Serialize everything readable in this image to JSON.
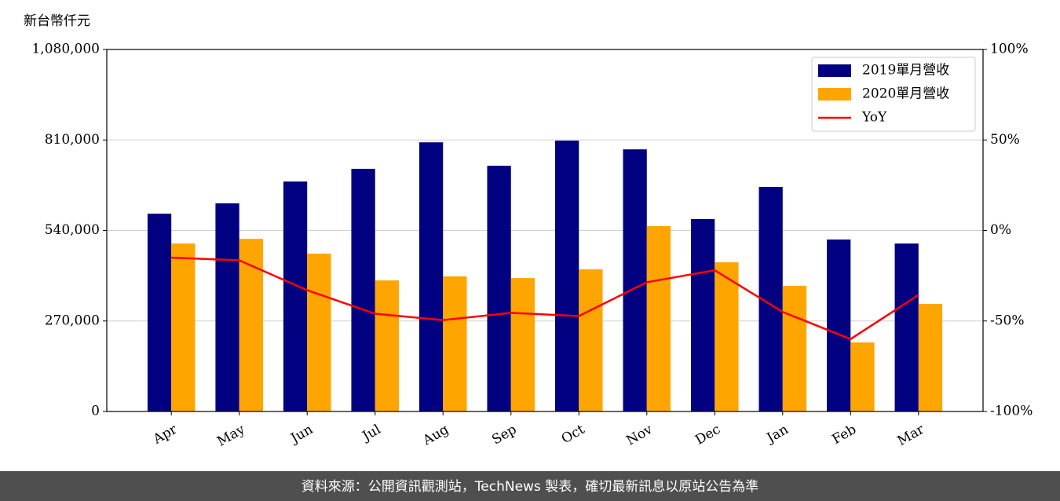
{
  "chart_data": {
    "type": "bar",
    "ylabel": "新台幣仟元",
    "categories": [
      "Apr",
      "May",
      "Jun",
      "Jul",
      "Aug",
      "Sep",
      "Oct",
      "Nov",
      "Dec",
      "Jan",
      "Feb",
      "Mar"
    ],
    "series": [
      {
        "name": "2019單月營收",
        "type": "bar",
        "color": "#000080",
        "values": [
          590000,
          621000,
          686000,
          724000,
          803000,
          733000,
          808000,
          782000,
          574000,
          670000,
          513000,
          501000
        ]
      },
      {
        "name": "2020單月營收",
        "type": "bar",
        "color": "#ffa500",
        "values": [
          501000,
          515000,
          471000,
          391000,
          403000,
          398000,
          424000,
          553000,
          445000,
          375000,
          206000,
          321000
        ]
      },
      {
        "name": "YoY",
        "type": "line",
        "axis": "y2",
        "color": "#ff0000",
        "values": [
          -15,
          -16.5,
          -33,
          -46,
          -49.5,
          -45.5,
          -47.3,
          -28.6,
          -22,
          -45,
          -60,
          -35.6
        ]
      }
    ],
    "ylim": [
      0,
      1080000
    ],
    "yticks": [
      0,
      {
        "value": 270000,
        "label": "270,000"
      },
      {
        "value": 540000,
        "label": "540,000"
      },
      {
        "value": 810000,
        "label": "810,000"
      },
      {
        "value": 1080000,
        "label": "1,080,000"
      }
    ],
    "y2lim": [
      -100,
      100
    ],
    "y2ticks": [
      {
        "value": -100,
        "label": "-100%"
      },
      {
        "value": -50,
        "label": "-50%"
      },
      {
        "value": 0,
        "label": "0%"
      },
      {
        "value": 50,
        "label": "50%"
      },
      {
        "value": 100,
        "label": "100%"
      }
    ],
    "grid": true,
    "legend": "upper right"
  },
  "footer": "資料來源：公開資訊觀測站，TechNews 製表，確切最新訊息以原站公告為準"
}
